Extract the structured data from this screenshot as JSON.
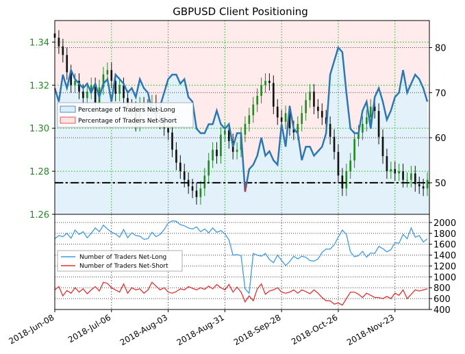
{
  "title": "GBPUSD Client Positioning",
  "colors": {
    "net_long_line": "#2a77b4",
    "net_long_fill": "#dceefa",
    "net_short_fill": "#ffe4e4",
    "net_short_line": "#e03030",
    "count_long_line": "#3f9ae0",
    "count_short_line": "#e03030",
    "price_axis_text": "#228b22",
    "candle_up": "#1e8c1e",
    "candle_down": "#111111",
    "grid_vertical": "#22aa22",
    "grid_dotted": "#444444"
  },
  "legends": {
    "top": [
      {
        "label": "Percentage of Traders Net-Long"
      },
      {
        "label": "Percentage of Traders Net-Short"
      }
    ],
    "bottom": [
      {
        "label": "Number of Traders Net-Long"
      },
      {
        "label": "Number of Traders Net-Short"
      }
    ]
  },
  "chart_data": [
    {
      "panel": "top",
      "type": "line",
      "title": "GBPUSD Client Positioning",
      "x_axis": {
        "type": "date",
        "range": [
          "2018-06-08",
          "2018-12-10"
        ],
        "tick_labels": [
          "2018-Jun-08",
          "2018-Jul-06",
          "2018-Aug-03",
          "2018-Aug-31",
          "2018-Sep-28",
          "2018-Oct-26",
          "2018-Nov-23"
        ],
        "tick_dates": [
          "2018-06-08",
          "2018-07-06",
          "2018-08-03",
          "2018-08-31",
          "2018-09-28",
          "2018-10-26",
          "2018-11-23"
        ]
      },
      "left_axis": {
        "label": "",
        "range": [
          1.26,
          1.35
        ],
        "ticks": [
          "1.26",
          "1.28",
          "1.30",
          "1.32",
          "1.34"
        ],
        "side": "left"
      },
      "right_axis": {
        "label": "",
        "range": [
          43,
          86
        ],
        "ticks": [
          "50",
          "60",
          "70",
          "80"
        ],
        "side": "right"
      },
      "reference_line": {
        "axis": "right",
        "value": 50,
        "style": "dash-dot"
      },
      "series": [
        {
          "name": "Percentage of Traders Net-Long",
          "axis": "right",
          "x": [
            "2018-06-08",
            "2018-06-10",
            "2018-06-12",
            "2018-06-14",
            "2018-06-16",
            "2018-06-18",
            "2018-06-20",
            "2018-06-22",
            "2018-06-24",
            "2018-06-26",
            "2018-06-28",
            "2018-06-30",
            "2018-07-02",
            "2018-07-04",
            "2018-07-06",
            "2018-07-08",
            "2018-07-10",
            "2018-07-12",
            "2018-07-14",
            "2018-07-16",
            "2018-07-18",
            "2018-07-20",
            "2018-07-22",
            "2018-07-24",
            "2018-07-26",
            "2018-07-28",
            "2018-07-30",
            "2018-08-01",
            "2018-08-03",
            "2018-08-05",
            "2018-08-07",
            "2018-08-09",
            "2018-08-11",
            "2018-08-13",
            "2018-08-15",
            "2018-08-17",
            "2018-08-19",
            "2018-08-21",
            "2018-08-23",
            "2018-08-25",
            "2018-08-27",
            "2018-08-29",
            "2018-08-31",
            "2018-09-02",
            "2018-09-04",
            "2018-09-06",
            "2018-09-08",
            "2018-09-10",
            "2018-09-12",
            "2018-09-14",
            "2018-09-16",
            "2018-09-18",
            "2018-09-20",
            "2018-09-22",
            "2018-09-24",
            "2018-09-26",
            "2018-09-28",
            "2018-09-30",
            "2018-10-02",
            "2018-10-04",
            "2018-10-06",
            "2018-10-08",
            "2018-10-10",
            "2018-10-12",
            "2018-10-14",
            "2018-10-16",
            "2018-10-18",
            "2018-10-20",
            "2018-10-22",
            "2018-10-24",
            "2018-10-26",
            "2018-10-28",
            "2018-10-30",
            "2018-11-01",
            "2018-11-03",
            "2018-11-05",
            "2018-11-07",
            "2018-11-09",
            "2018-11-11",
            "2018-11-13",
            "2018-11-15",
            "2018-11-17",
            "2018-11-19",
            "2018-11-21",
            "2018-11-23",
            "2018-11-25",
            "2018-11-27",
            "2018-11-29",
            "2018-12-01",
            "2018-12-03",
            "2018-12-05",
            "2018-12-07",
            "2018-12-09"
          ],
          "values": [
            71,
            68,
            74,
            71,
            75,
            73,
            72,
            71,
            72,
            70,
            72,
            69,
            72,
            73,
            68,
            74,
            73,
            72,
            70,
            71,
            69,
            73,
            71,
            70,
            66,
            65,
            67,
            70,
            73,
            74,
            74,
            72,
            73,
            69,
            68,
            62,
            61,
            61,
            63,
            63,
            66,
            63,
            62,
            63,
            58,
            61,
            61,
            48,
            53,
            54,
            56,
            60,
            56,
            57,
            55,
            54,
            63,
            58,
            67,
            62,
            61,
            55,
            58,
            58,
            56,
            57,
            58,
            61,
            74,
            77,
            80,
            79,
            70,
            62,
            61,
            61,
            66,
            68,
            62,
            69,
            71,
            68,
            64,
            66,
            69,
            70,
            75,
            70,
            72,
            74,
            73,
            71,
            68
          ]
        }
      ]
    },
    {
      "panel": "top",
      "type": "candlestick",
      "name": "GBPUSD price",
      "axis": "left",
      "x": [
        "2018-06-08",
        "2018-06-10",
        "2018-06-12",
        "2018-06-14",
        "2018-06-16",
        "2018-06-18",
        "2018-06-20",
        "2018-06-22",
        "2018-06-24",
        "2018-06-26",
        "2018-06-28",
        "2018-06-30",
        "2018-07-02",
        "2018-07-04",
        "2018-07-06",
        "2018-07-08",
        "2018-07-10",
        "2018-07-12",
        "2018-07-14",
        "2018-07-16",
        "2018-07-18",
        "2018-07-20",
        "2018-07-22",
        "2018-07-24",
        "2018-07-26",
        "2018-07-28",
        "2018-07-30",
        "2018-08-01",
        "2018-08-03",
        "2018-08-05",
        "2018-08-07",
        "2018-08-09",
        "2018-08-11",
        "2018-08-13",
        "2018-08-15",
        "2018-08-17",
        "2018-08-19",
        "2018-08-21",
        "2018-08-23",
        "2018-08-25",
        "2018-08-27",
        "2018-08-29",
        "2018-08-31",
        "2018-09-02",
        "2018-09-04",
        "2018-09-06",
        "2018-09-08",
        "2018-09-10",
        "2018-09-12",
        "2018-09-14",
        "2018-09-16",
        "2018-09-18",
        "2018-09-20",
        "2018-09-22",
        "2018-09-24",
        "2018-09-26",
        "2018-09-28",
        "2018-09-30",
        "2018-10-02",
        "2018-10-04",
        "2018-10-06",
        "2018-10-08",
        "2018-10-10",
        "2018-10-12",
        "2018-10-14",
        "2018-10-16",
        "2018-10-18",
        "2018-10-20",
        "2018-10-22",
        "2018-10-24",
        "2018-10-26",
        "2018-10-28",
        "2018-10-30",
        "2018-11-01",
        "2018-11-03",
        "2018-11-05",
        "2018-11-07",
        "2018-11-09",
        "2018-11-11",
        "2018-11-13",
        "2018-11-15",
        "2018-11-17",
        "2018-11-19",
        "2018-11-21",
        "2018-11-23",
        "2018-11-25",
        "2018-11-27",
        "2018-11-29",
        "2018-12-01",
        "2018-12-03",
        "2018-12-05",
        "2018-12-07",
        "2018-12-09"
      ],
      "close": [
        1.342,
        1.338,
        1.334,
        1.326,
        1.32,
        1.322,
        1.317,
        1.314,
        1.317,
        1.32,
        1.312,
        1.319,
        1.325,
        1.327,
        1.322,
        1.316,
        1.32,
        1.314,
        1.31,
        1.309,
        1.302,
        1.311,
        1.31,
        1.309,
        1.312,
        1.305,
        1.303,
        1.3,
        1.298,
        1.29,
        1.284,
        1.28,
        1.276,
        1.273,
        1.271,
        1.268,
        1.272,
        1.278,
        1.285,
        1.29,
        1.287,
        1.297,
        1.299,
        1.294,
        1.289,
        1.29,
        1.297,
        1.302,
        1.306,
        1.311,
        1.315,
        1.32,
        1.322,
        1.321,
        1.31,
        1.305,
        1.303,
        1.307,
        1.3,
        1.298,
        1.302,
        1.307,
        1.313,
        1.317,
        1.31,
        1.308,
        1.305,
        1.302,
        1.296,
        1.289,
        1.278,
        1.272,
        1.28,
        1.285,
        1.295,
        1.298,
        1.302,
        1.305,
        1.31,
        1.308,
        1.296,
        1.287,
        1.28,
        1.281,
        1.279,
        1.28,
        1.276,
        1.276,
        1.279,
        1.274,
        1.273,
        1.272,
        1.276
      ]
    },
    {
      "panel": "bottom",
      "type": "line",
      "x_axis": {
        "type": "date",
        "range": [
          "2018-06-08",
          "2018-12-10"
        ],
        "tick_labels": [
          "2018-Jun-08",
          "2018-Jul-06",
          "2018-Aug-03",
          "2018-Aug-31",
          "2018-Sep-28",
          "2018-Oct-26",
          "2018-Nov-23"
        ]
      },
      "right_axis": {
        "label": "",
        "range": [
          400,
          2150
        ],
        "ticks": [
          "400",
          "600",
          "800",
          "1000",
          "1200",
          "1400",
          "1600",
          "1800",
          "2000"
        ],
        "side": "right"
      },
      "series": [
        {
          "name": "Number of Traders Net-Long",
          "x": [
            "2018-06-08",
            "2018-06-10",
            "2018-06-12",
            "2018-06-14",
            "2018-06-16",
            "2018-06-18",
            "2018-06-20",
            "2018-06-22",
            "2018-06-24",
            "2018-06-26",
            "2018-06-28",
            "2018-06-30",
            "2018-07-02",
            "2018-07-04",
            "2018-07-06",
            "2018-07-08",
            "2018-07-10",
            "2018-07-12",
            "2018-07-14",
            "2018-07-16",
            "2018-07-18",
            "2018-07-20",
            "2018-07-22",
            "2018-07-24",
            "2018-07-26",
            "2018-07-28",
            "2018-07-30",
            "2018-08-01",
            "2018-08-03",
            "2018-08-05",
            "2018-08-07",
            "2018-08-09",
            "2018-08-11",
            "2018-08-13",
            "2018-08-15",
            "2018-08-17",
            "2018-08-19",
            "2018-08-21",
            "2018-08-23",
            "2018-08-25",
            "2018-08-27",
            "2018-08-29",
            "2018-08-31",
            "2018-09-02",
            "2018-09-04",
            "2018-09-06",
            "2018-09-08",
            "2018-09-10",
            "2018-09-12",
            "2018-09-14",
            "2018-09-16",
            "2018-09-18",
            "2018-09-20",
            "2018-09-22",
            "2018-09-24",
            "2018-09-26",
            "2018-09-28",
            "2018-09-30",
            "2018-10-02",
            "2018-10-04",
            "2018-10-06",
            "2018-10-08",
            "2018-10-10",
            "2018-10-12",
            "2018-10-14",
            "2018-10-16",
            "2018-10-18",
            "2018-10-20",
            "2018-10-22",
            "2018-10-24",
            "2018-10-26",
            "2018-10-28",
            "2018-10-30",
            "2018-11-01",
            "2018-11-03",
            "2018-11-05",
            "2018-11-07",
            "2018-11-09",
            "2018-11-11",
            "2018-11-13",
            "2018-11-15",
            "2018-11-17",
            "2018-11-19",
            "2018-11-21",
            "2018-11-23",
            "2018-11-25",
            "2018-11-27",
            "2018-11-29",
            "2018-12-01",
            "2018-12-03",
            "2018-12-05",
            "2018-12-07",
            "2018-12-09"
          ],
          "values": [
            1700,
            1760,
            1740,
            1800,
            1710,
            1860,
            1780,
            1830,
            1720,
            1800,
            1900,
            1830,
            1950,
            1880,
            1820,
            1790,
            1730,
            1870,
            1720,
            1810,
            1760,
            1750,
            1690,
            1700,
            1820,
            1740,
            1780,
            1870,
            1990,
            2030,
            2020,
            1960,
            1940,
            1900,
            1880,
            1920,
            1830,
            1880,
            1810,
            1900,
            1820,
            1850,
            1790,
            1680,
            1400,
            1410,
            1390,
            780,
            700,
            1430,
            1400,
            1380,
            1430,
            1320,
            1260,
            1400,
            1300,
            1210,
            1280,
            1380,
            1330,
            1380,
            1360,
            1300,
            1290,
            1330,
            1450,
            1510,
            1510,
            1590,
            1730,
            1860,
            1780,
            1460,
            1370,
            1390,
            1470,
            1360,
            1440,
            1430,
            1560,
            1520,
            1460,
            1500,
            1630,
            1620,
            1780,
            1700,
            1900,
            1730,
            1760,
            1640,
            1700
          ]
        },
        {
          "name": "Number of Traders Net-Short",
          "x": [
            "2018-06-08",
            "2018-06-10",
            "2018-06-12",
            "2018-06-14",
            "2018-06-16",
            "2018-06-18",
            "2018-06-20",
            "2018-06-22",
            "2018-06-24",
            "2018-06-26",
            "2018-06-28",
            "2018-06-30",
            "2018-07-02",
            "2018-07-04",
            "2018-07-06",
            "2018-07-08",
            "2018-07-10",
            "2018-07-12",
            "2018-07-14",
            "2018-07-16",
            "2018-07-18",
            "2018-07-20",
            "2018-07-22",
            "2018-07-24",
            "2018-07-26",
            "2018-07-28",
            "2018-07-30",
            "2018-08-01",
            "2018-08-03",
            "2018-08-05",
            "2018-08-07",
            "2018-08-09",
            "2018-08-11",
            "2018-08-13",
            "2018-08-15",
            "2018-08-17",
            "2018-08-19",
            "2018-08-21",
            "2018-08-23",
            "2018-08-25",
            "2018-08-27",
            "2018-08-29",
            "2018-08-31",
            "2018-09-02",
            "2018-09-04",
            "2018-09-06",
            "2018-09-08",
            "2018-09-10",
            "2018-09-12",
            "2018-09-14",
            "2018-09-16",
            "2018-09-18",
            "2018-09-20",
            "2018-09-22",
            "2018-09-24",
            "2018-09-26",
            "2018-09-28",
            "2018-09-30",
            "2018-10-02",
            "2018-10-04",
            "2018-10-06",
            "2018-10-08",
            "2018-10-10",
            "2018-10-12",
            "2018-10-14",
            "2018-10-16",
            "2018-10-18",
            "2018-10-20",
            "2018-10-22",
            "2018-10-24",
            "2018-10-26",
            "2018-10-28",
            "2018-10-30",
            "2018-11-01",
            "2018-11-03",
            "2018-11-05",
            "2018-11-07",
            "2018-11-09",
            "2018-11-11",
            "2018-11-13",
            "2018-11-15",
            "2018-11-17",
            "2018-11-19",
            "2018-11-21",
            "2018-11-23",
            "2018-11-25",
            "2018-11-27",
            "2018-11-29",
            "2018-12-01",
            "2018-12-03",
            "2018-12-05",
            "2018-12-07",
            "2018-12-09"
          ],
          "values": [
            760,
            820,
            650,
            750,
            700,
            800,
            720,
            780,
            690,
            760,
            820,
            740,
            900,
            880,
            800,
            760,
            720,
            870,
            700,
            800,
            760,
            780,
            700,
            760,
            900,
            830,
            760,
            800,
            720,
            700,
            730,
            780,
            760,
            820,
            790,
            760,
            800,
            770,
            830,
            780,
            860,
            800,
            760,
            860,
            720,
            810,
            720,
            540,
            650,
            560,
            780,
            870,
            680,
            740,
            760,
            800,
            720,
            700,
            720,
            760,
            700,
            760,
            730,
            690,
            760,
            700,
            620,
            560,
            560,
            500,
            520,
            480,
            600,
            720,
            720,
            680,
            620,
            700,
            660,
            620,
            620,
            600,
            640,
            600,
            700,
            660,
            760,
            600,
            680,
            760,
            740,
            760,
            780
          ]
        }
      ]
    }
  ]
}
